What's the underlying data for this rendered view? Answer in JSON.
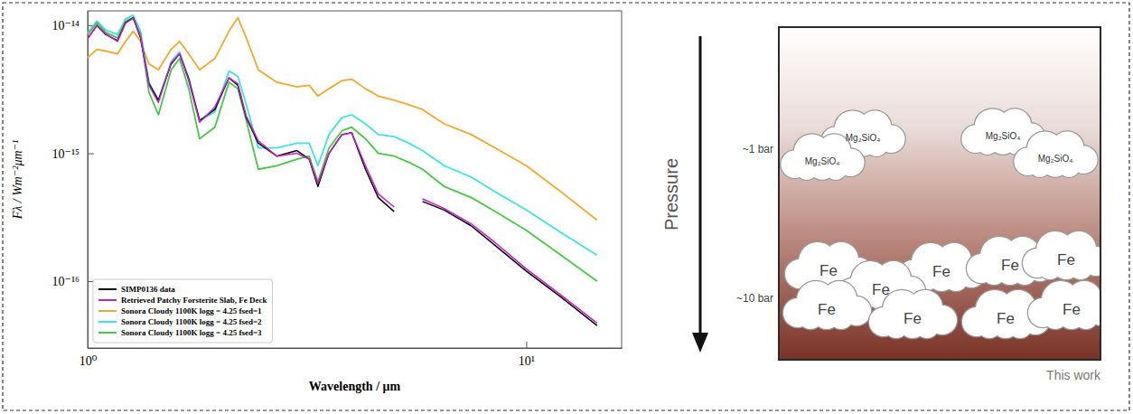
{
  "chart_data": {
    "type": "line",
    "x_label": "Wavelength / μm",
    "y_label": "Fλ / Wm⁻²μm⁻¹",
    "log": true,
    "legend": "lower left",
    "xlim": [
      1.0,
      16.5
    ],
    "ylim": [
      3e-17,
      1.3e-14
    ],
    "xticks": [
      {
        "value": 1,
        "label": "10⁰"
      },
      {
        "value": 10,
        "label": "10¹"
      }
    ],
    "yticks": [
      {
        "value": 1e-16,
        "label": "10⁻¹⁶"
      },
      {
        "value": 1e-15,
        "label": "10⁻¹⁵"
      },
      {
        "value": 1e-14,
        "label": "10⁻¹⁴"
      }
    ],
    "x": [
      1.0,
      1.05,
      1.1,
      1.17,
      1.22,
      1.27,
      1.32,
      1.38,
      1.45,
      1.55,
      1.62,
      1.7,
      1.8,
      1.95,
      2.1,
      2.2,
      2.3,
      2.45,
      2.7,
      3.0,
      3.2,
      3.35,
      3.55,
      3.8,
      4.0,
      4.3,
      4.6,
      5.0,
      5.4,
      5.8,
      6.5,
      7.5,
      8.5,
      10,
      12,
      14.5
    ],
    "series": [
      {
        "name": "SIMP0136 data",
        "color": "#000000",
        "values": [
          7.9e-15,
          1e-14,
          8.5e-15,
          7.6e-15,
          1.05e-14,
          1.15e-14,
          8e-15,
          3.5e-15,
          2.6e-15,
          5e-15,
          6e-15,
          3.8e-15,
          1.8e-15,
          2.2e-15,
          3.9e-15,
          3.4e-15,
          1.9e-15,
          1.2e-15,
          9.5e-16,
          1.05e-15,
          9e-16,
          5.5e-16,
          1e-15,
          1.4e-15,
          1.45e-15,
          7.5e-16,
          4.5e-16,
          3.5e-16,
          null,
          4.2e-16,
          3.6e-16,
          2.7e-16,
          1.9e-16,
          1.2e-16,
          7.5e-17,
          4.5e-17
        ]
      },
      {
        "name": "Retrieved Patchy Forsterite Slab, Fe Deck",
        "color": "#c81ecc",
        "values": [
          7.9e-15,
          1e-14,
          8.6e-15,
          7.5e-15,
          1.04e-14,
          1.14e-14,
          8.2e-15,
          3.4e-15,
          2.5e-15,
          5.1e-15,
          6e-15,
          3.7e-15,
          1.75e-15,
          2.3e-15,
          3.9e-15,
          3.5e-15,
          1.95e-15,
          1.25e-15,
          9.5e-16,
          1e-15,
          9e-16,
          5.8e-16,
          1e-15,
          1.4e-15,
          1.45e-15,
          8e-16,
          4.8e-16,
          3.8e-16,
          null,
          4.4e-16,
          3.7e-16,
          2.8e-16,
          2e-16,
          1.25e-16,
          7.8e-17,
          4.7e-17
        ]
      },
      {
        "name": "Sonora Cloudy 1100K logg = 4.25 fsed=1",
        "color": "#f2a92e",
        "values": [
          5.6e-15,
          6.5e-15,
          6.3e-15,
          6e-15,
          7.5e-15,
          9e-15,
          7.5e-15,
          5e-15,
          4.5e-15,
          6.5e-15,
          7.5e-15,
          6e-15,
          4.5e-15,
          5.5e-15,
          9e-15,
          1.15e-14,
          8e-15,
          4.5e-15,
          3.6e-15,
          3.3e-15,
          3.4e-15,
          2.8e-15,
          3.2e-15,
          3.7e-15,
          3.8e-15,
          3.2e-15,
          2.8e-15,
          2.6e-15,
          2.4e-15,
          2.2e-15,
          1.7e-15,
          1.4e-15,
          1.1e-15,
          8e-16,
          5e-16,
          3e-16
        ]
      },
      {
        "name": "Sonora Cloudy 1100K logg = 4.25 fsed=2",
        "color": "#3fe3e3",
        "values": [
          8.7e-15,
          1.08e-14,
          9.2e-15,
          8.5e-15,
          1.12e-14,
          1.2e-14,
          9e-15,
          3.6e-15,
          2.6e-15,
          5.2e-15,
          6.2e-15,
          3.9e-15,
          1.8e-15,
          2.1e-15,
          4.4e-15,
          4e-15,
          2.4e-15,
          1.1e-15,
          1.1e-15,
          1.2e-15,
          1.2e-15,
          8e-16,
          1.4e-15,
          1.9e-15,
          2e-15,
          1.7e-15,
          1.4e-15,
          1.35e-15,
          1.2e-15,
          1.05e-15,
          8e-16,
          6.5e-16,
          5e-16,
          3.6e-16,
          2.4e-16,
          1.6e-16
        ]
      },
      {
        "name": "Sonora Cloudy 1100K logg = 4.25 fsed=3",
        "color": "#48c848",
        "values": [
          8.5e-15,
          1.05e-14,
          8.8e-15,
          8e-15,
          1.08e-14,
          1.15e-14,
          8.5e-15,
          3e-15,
          2e-15,
          4.5e-15,
          5.5e-15,
          3.2e-15,
          1.3e-15,
          1.6e-15,
          3.6e-15,
          3.2e-15,
          1.8e-15,
          7.5e-16,
          8e-16,
          9e-16,
          9.5e-16,
          6e-16,
          1.1e-15,
          1.5e-15,
          1.6e-15,
          1.3e-15,
          1e-15,
          9.5e-16,
          8.5e-16,
          7.5e-16,
          5.5e-16,
          4.5e-16,
          3.5e-16,
          2.5e-16,
          1.6e-16,
          1e-16
        ]
      }
    ]
  },
  "diagram": {
    "axis_label": "Pressure",
    "levels": [
      "~1 bar",
      "~10 bar"
    ],
    "upper_clouds": [
      "Mg₂SiO₄",
      "Mg₂SiO₄",
      "Mg₂SiO₄",
      "Mg₂SiO₄"
    ],
    "lower_clouds": [
      "Fe",
      "Fe",
      "Fe",
      "Fe",
      "Fe",
      "Fe",
      "Fe",
      "Fe",
      "Fe"
    ],
    "caption": "This work"
  }
}
